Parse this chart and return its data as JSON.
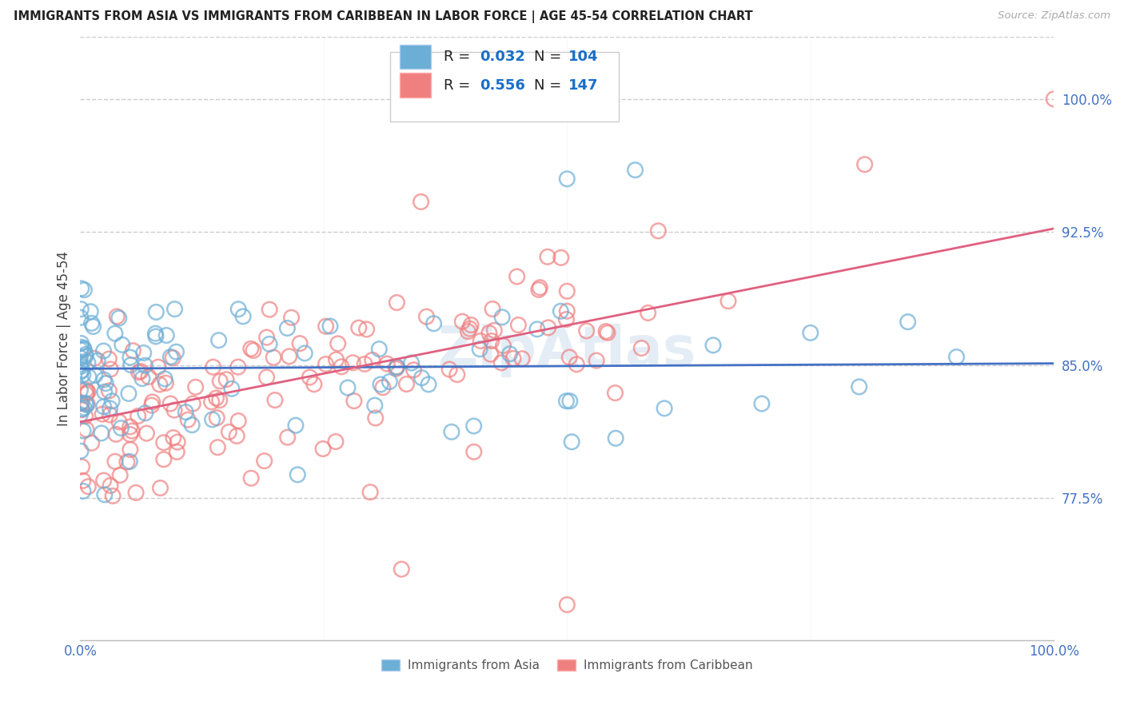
{
  "title": "IMMIGRANTS FROM ASIA VS IMMIGRANTS FROM CARIBBEAN IN LABOR FORCE | AGE 45-54 CORRELATION CHART",
  "source": "Source: ZipAtlas.com",
  "ylabel": "In Labor Force | Age 45-54",
  "xlim": [
    0.0,
    1.0
  ],
  "ylim": [
    0.695,
    1.035
  ],
  "yticks": [
    0.775,
    0.85,
    0.925,
    1.0
  ],
  "ytick_labels": [
    "77.5%",
    "85.0%",
    "92.5%",
    "100.0%"
  ],
  "xtick_positions": [
    0.0,
    0.25,
    0.5,
    0.75,
    1.0
  ],
  "xtick_labels": [
    "0.0%",
    "",
    "",
    "",
    "100.0%"
  ],
  "asia_color": "#6baed6",
  "carib_color": "#f08080",
  "asia_line_color": "#4472c4",
  "carib_line_color": "#e06080",
  "asia_R": 0.032,
  "asia_N": 104,
  "carib_R": 0.556,
  "carib_N": 147,
  "asia_line_y0": 0.848,
  "asia_line_y1": 0.851,
  "carib_line_y0": 0.818,
  "carib_line_y1": 0.927,
  "label_color": "#4472c4",
  "title_color": "#222222",
  "grid_color": "#cccccc",
  "background_color": "#ffffff",
  "legend_R_color": "#1a6ec7",
  "legend_N_color": "#1a6ec7"
}
